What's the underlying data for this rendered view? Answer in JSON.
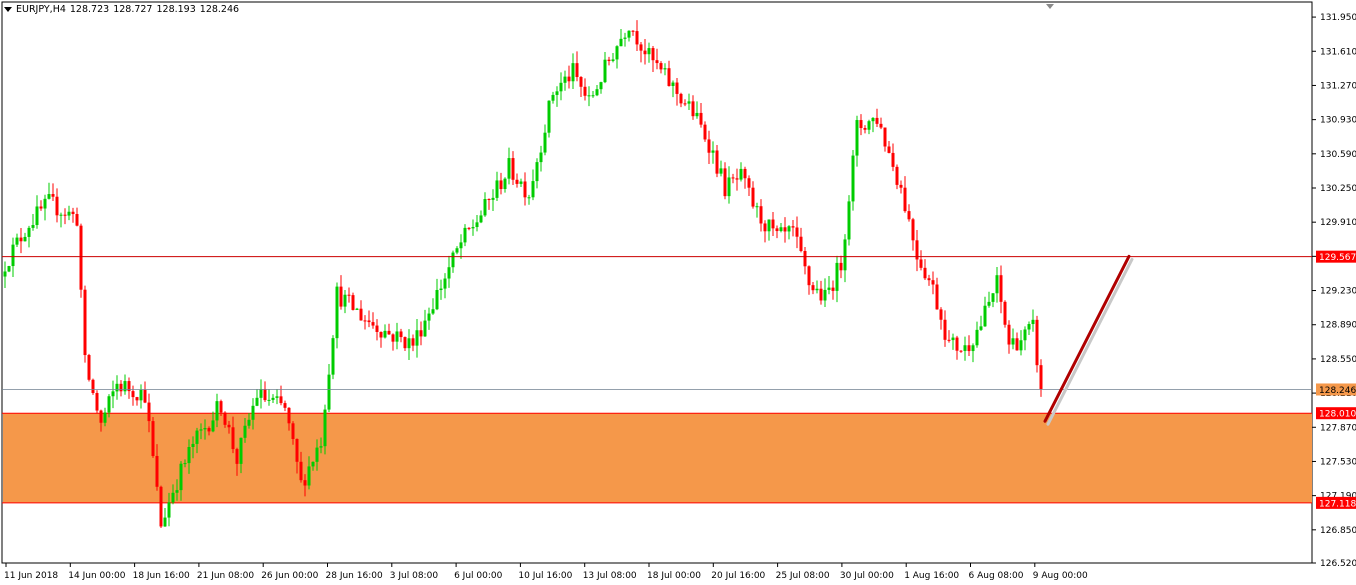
{
  "header": {
    "symbol": "EURJPY,H4",
    "open": "128.723",
    "high": "128.727",
    "low": "128.193",
    "close": "128.246"
  },
  "colors": {
    "bull": "#00cc00",
    "bear": "#ff0000",
    "zone_fill": "#f5984a",
    "zone_border": "#ff0000",
    "level_line": "#cc0000",
    "price_line": "#708090",
    "arrow": "#b00000",
    "axis": "#000000"
  },
  "chart_data": {
    "type": "candlestick",
    "ylim": [
      126.52,
      132.1
    ],
    "yticks": [
      "131.950",
      "131.610",
      "131.270",
      "130.930",
      "130.590",
      "130.250",
      "129.910",
      "129.570",
      "129.230",
      "128.890",
      "128.550",
      "128.210",
      "127.870",
      "127.530",
      "127.190",
      "126.850",
      "126.520"
    ],
    "xticks": [
      "11 Jun 2018",
      "14 Jun 00:00",
      "18 Jun 16:00",
      "21 Jun 08:00",
      "26 Jun 00:00",
      "28 Jun 16:00",
      "3 Jul 08:00",
      "6 Jul 00:00",
      "10 Jul 16:00",
      "13 Jul 08:00",
      "18 Jul 00:00",
      "20 Jul 16:00",
      "25 Jul 08:00",
      "30 Jul 00:00",
      "1 Aug 16:00",
      "6 Aug 08:00",
      "9 Aug 00:00"
    ],
    "levels": [
      {
        "label": "129.567",
        "value": 129.567
      },
      {
        "label": "128.010",
        "value": 128.01
      },
      {
        "label": "127.118",
        "value": 127.118
      }
    ],
    "current_price": {
      "label": "128.246",
      "value": 128.246
    },
    "zone": {
      "from": 127.118,
      "to": 128.01
    },
    "projection": {
      "from_index": 260,
      "from_price": 127.93,
      "to_index": 281,
      "to_price": 129.57
    },
    "anchors": [
      [
        0,
        129.5
      ],
      [
        6,
        129.9
      ],
      [
        11,
        130.1
      ],
      [
        18,
        129.95
      ],
      [
        20,
        128.5
      ],
      [
        24,
        127.9
      ],
      [
        28,
        128.3
      ],
      [
        35,
        128.2
      ],
      [
        39,
        126.9
      ],
      [
        42,
        127.25
      ],
      [
        47,
        127.7
      ],
      [
        54,
        128.1
      ],
      [
        58,
        127.55
      ],
      [
        63,
        128.2
      ],
      [
        70,
        128.05
      ],
      [
        74,
        127.3
      ],
      [
        79,
        127.75
      ],
      [
        83,
        129.2
      ],
      [
        90,
        128.95
      ],
      [
        96,
        128.8
      ],
      [
        102,
        128.7
      ],
      [
        108,
        129.2
      ],
      [
        114,
        129.7
      ],
      [
        120,
        130.05
      ],
      [
        126,
        130.45
      ],
      [
        131,
        130.2
      ],
      [
        137,
        131.2
      ],
      [
        142,
        131.4
      ],
      [
        146,
        131.1
      ],
      [
        152,
        131.6
      ],
      [
        156,
        131.9
      ],
      [
        161,
        131.55
      ],
      [
        166,
        131.3
      ],
      [
        172,
        131.0
      ],
      [
        176,
        130.7
      ],
      [
        180,
        130.25
      ],
      [
        184,
        130.35
      ],
      [
        188,
        130.0
      ],
      [
        193,
        129.75
      ],
      [
        197,
        129.8
      ],
      [
        201,
        129.3
      ],
      [
        205,
        129.15
      ],
      [
        209,
        129.5
      ],
      [
        213,
        130.85
      ],
      [
        218,
        130.95
      ],
      [
        224,
        130.25
      ],
      [
        228,
        129.6
      ],
      [
        232,
        129.25
      ],
      [
        236,
        128.7
      ],
      [
        240,
        128.65
      ],
      [
        244,
        128.9
      ],
      [
        248,
        129.3
      ],
      [
        251,
        128.7
      ],
      [
        254,
        128.75
      ],
      [
        257,
        128.85
      ],
      [
        259,
        128.25
      ]
    ]
  }
}
